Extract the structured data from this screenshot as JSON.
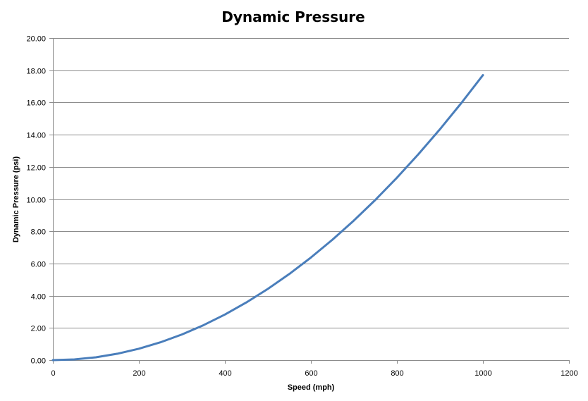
{
  "chart_data": {
    "type": "line",
    "title": "Dynamic Pressure",
    "xlabel": "Speed (mph)",
    "ylabel": "Dynamic Pressure (psi)",
    "xlim": [
      0,
      1200
    ],
    "ylim": [
      0,
      20
    ],
    "x_ticks": [
      "0",
      "200",
      "400",
      "600",
      "800",
      "1000",
      "1200"
    ],
    "y_ticks": [
      "0.00",
      "2.00",
      "4.00",
      "6.00",
      "8.00",
      "10.00",
      "12.00",
      "14.00",
      "16.00",
      "18.00",
      "20.00"
    ],
    "grid": "horizontal",
    "legend": "none",
    "series": [
      {
        "color": "#4a7ebb",
        "x": [
          0,
          50,
          100,
          150,
          200,
          250,
          300,
          350,
          400,
          450,
          500,
          550,
          600,
          650,
          700,
          750,
          800,
          850,
          900,
          950,
          1000
        ],
        "y": [
          0,
          0.044,
          0.177,
          0.398,
          0.708,
          1.106,
          1.593,
          2.168,
          2.832,
          3.584,
          4.425,
          5.354,
          6.372,
          7.478,
          8.673,
          9.956,
          11.328,
          12.788,
          14.337,
          15.974,
          17.7
        ]
      }
    ]
  }
}
